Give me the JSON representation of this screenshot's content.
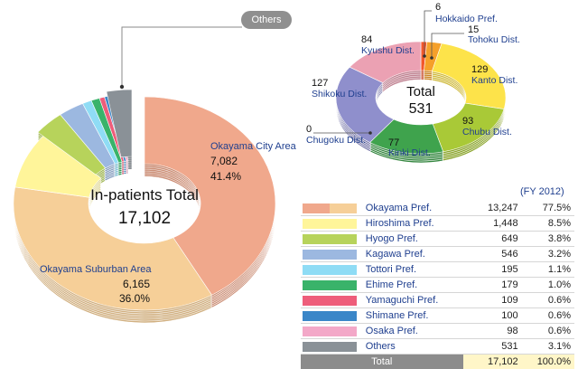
{
  "chart_data": [
    {
      "type": "pie",
      "title": "In-patients Total",
      "total": "17,102",
      "slices": [
        {
          "name": "Okayama City Area",
          "value": 7082,
          "percent": "41.4%",
          "value_label": "7,082",
          "color": "#f0a88c"
        },
        {
          "name": "Okayama Suburban Area",
          "value": 6165,
          "percent": "36.0%",
          "value_label": "6,165",
          "color": "#f6cf98"
        },
        {
          "name": "Hiroshima Pref.",
          "value": 1448,
          "color": "#fff59a"
        },
        {
          "name": "Hyogo Pref.",
          "value": 649,
          "color": "#b7d35b"
        },
        {
          "name": "Kagawa Pref.",
          "value": 546,
          "color": "#9cb8e0"
        },
        {
          "name": "Tottori Pref.",
          "value": 195,
          "color": "#8fdcf5"
        },
        {
          "name": "Ehime Pref.",
          "value": 179,
          "color": "#39b36a"
        },
        {
          "name": "Yamaguchi Pref.",
          "value": 109,
          "color": "#ee5d7a"
        },
        {
          "name": "Shimane Pref.",
          "value": 100,
          "color": "#3a86c8"
        },
        {
          "name": "Osaka Pref.",
          "value": 98,
          "color": "#f3a8c8"
        },
        {
          "name": "Others",
          "value": 531,
          "color": "#8a9197"
        }
      ],
      "others_label": "Others"
    },
    {
      "type": "pie",
      "title": "Total",
      "total": "531",
      "slices": [
        {
          "name": "Hokkaido Pref.",
          "value": 6,
          "color": "#f2572b"
        },
        {
          "name": "Tohoku Dist.",
          "value": 15,
          "color": "#f5a02a"
        },
        {
          "name": "Kanto Dist.",
          "value": 129,
          "color": "#fde34a"
        },
        {
          "name": "Chubu Dist.",
          "value": 93,
          "color": "#a9c937"
        },
        {
          "name": "Kinki Dist.",
          "value": 77,
          "color": "#3fa34d"
        },
        {
          "name": "Chugoku Dist.",
          "value": 0,
          "color": "#3c7fd0"
        },
        {
          "name": "Shikoku Dist.",
          "value": 127,
          "color": "#8f8fcc"
        },
        {
          "name": "Kyushu Dist.",
          "value": 84,
          "color": "#eba1b3"
        }
      ]
    },
    {
      "type": "table",
      "note": "(FY 2012)",
      "rows": [
        {
          "name": "Okayama Pref.",
          "value": "13,247",
          "percent": "77.5%",
          "color": "#f0a88c",
          "color2": "#f6cf98"
        },
        {
          "name": "Hiroshima Pref.",
          "value": "1,448",
          "percent": "8.5%",
          "color": "#fff59a"
        },
        {
          "name": "Hyogo Pref.",
          "value": "649",
          "percent": "3.8%",
          "color": "#b7d35b"
        },
        {
          "name": "Kagawa Pref.",
          "value": "546",
          "percent": "3.2%",
          "color": "#9cb8e0"
        },
        {
          "name": "Tottori Pref.",
          "value": "195",
          "percent": "1.1%",
          "color": "#8fdcf5"
        },
        {
          "name": "Ehime Pref.",
          "value": "179",
          "percent": "1.0%",
          "color": "#39b36a"
        },
        {
          "name": "Yamaguchi Pref.",
          "value": "109",
          "percent": "0.6%",
          "color": "#ee5d7a"
        },
        {
          "name": "Shimane Pref.",
          "value": "100",
          "percent": "0.6%",
          "color": "#3a86c8"
        },
        {
          "name": "Osaka Pref.",
          "value": "98",
          "percent": "0.6%",
          "color": "#f3a8c8"
        },
        {
          "name": "Others",
          "value": "531",
          "percent": "3.1%",
          "color": "#8a9197"
        }
      ],
      "total": {
        "name": "Total",
        "value": "17,102",
        "percent": "100.0%"
      }
    }
  ]
}
